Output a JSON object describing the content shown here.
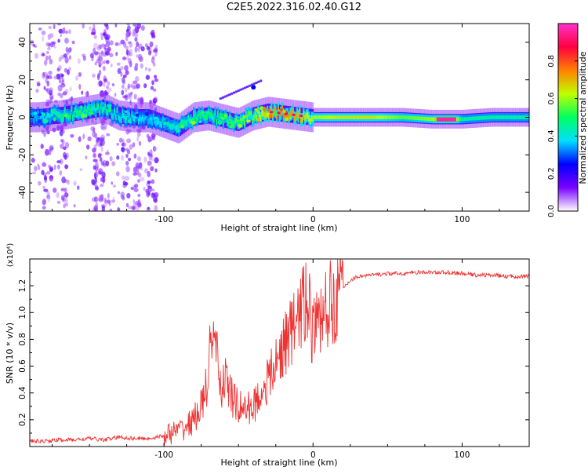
{
  "title": "C2E5.2022.316.02.40.G12",
  "chart_data": [
    {
      "type": "heatmap",
      "xlabel": "Height of straight line (km)",
      "ylabel": "Frequency (Hz)",
      "xlim": [
        -190,
        145
      ],
      "ylim": [
        -50,
        50
      ],
      "x_ticks": [
        -100,
        0,
        100
      ],
      "y_ticks": [
        -40,
        -20,
        0,
        20,
        40
      ],
      "colorbar": {
        "label": "Normalized spectral amplitude",
        "range": [
          0,
          1
        ],
        "ticks": [
          "0.0",
          "0.2",
          "0.4",
          "0.6",
          "0.8"
        ],
        "colors": [
          "#ffffff",
          "#7a00ff",
          "#0000ff",
          "#00e0ff",
          "#00ff60",
          "#c0ff00",
          "#ff8000",
          "#ff0040",
          "#ff33cc"
        ]
      },
      "ridge": {
        "x": [
          -185,
          -170,
          -155,
          -140,
          -130,
          -120,
          -110,
          -100,
          -90,
          -80,
          -70,
          -60,
          -50,
          -40,
          -30,
          -20,
          -10,
          0,
          20,
          40,
          60,
          80,
          90,
          100,
          120,
          140
        ],
        "y": [
          0,
          1,
          3,
          5,
          1,
          0,
          0,
          -3,
          -6,
          0,
          1,
          -1,
          -3,
          1,
          3,
          2,
          1,
          0,
          0,
          0,
          0,
          -1,
          -1,
          -1,
          0,
          0
        ],
        "amp": [
          0.35,
          0.45,
          0.5,
          0.45,
          0.4,
          0.4,
          0.35,
          0.4,
          0.45,
          0.5,
          0.5,
          0.5,
          0.55,
          0.55,
          0.7,
          0.75,
          0.7,
          0.6,
          0.65,
          0.65,
          0.55,
          0.6,
          0.95,
          0.45,
          0.45,
          0.45
        ]
      }
    },
    {
      "type": "line",
      "xlabel": "Height of straight line (km)",
      "ylabel": "SNR (10 * v/v)",
      "y_multiplier": "(x10⁴)",
      "xlim": [
        -190,
        145
      ],
      "ylim": [
        0,
        1.4
      ],
      "x_ticks": [
        -100,
        0,
        100
      ],
      "y_ticks": [
        "0.2",
        "0.4",
        "0.6",
        "0.8",
        "1.0",
        "1.2"
      ],
      "series": [
        {
          "color": "#ee3333",
          "x": [
            -190,
            -180,
            -170,
            -160,
            -150,
            -140,
            -130,
            -120,
            -110,
            -100,
            -90,
            -85,
            -80,
            -75,
            -70,
            -66,
            -62,
            -58,
            -54,
            -50,
            -45,
            -40,
            -35,
            -30,
            -25,
            -20,
            -15,
            -10,
            -5,
            0,
            5,
            10,
            15,
            20,
            25,
            30,
            40,
            50,
            60,
            70,
            80,
            90,
            100,
            110,
            120,
            130,
            140
          ],
          "y": [
            0.04,
            0.04,
            0.05,
            0.05,
            0.06,
            0.05,
            0.07,
            0.06,
            0.06,
            0.08,
            0.12,
            0.15,
            0.2,
            0.3,
            0.5,
            0.8,
            0.45,
            0.5,
            0.35,
            0.3,
            0.28,
            0.3,
            0.4,
            0.5,
            0.6,
            0.75,
            0.85,
            0.95,
            1.1,
            0.85,
            0.95,
            1.05,
            1.1,
            1.18,
            1.24,
            1.27,
            1.28,
            1.29,
            1.29,
            1.3,
            1.3,
            1.3,
            1.29,
            1.28,
            1.28,
            1.27,
            1.27
          ]
        }
      ]
    }
  ]
}
